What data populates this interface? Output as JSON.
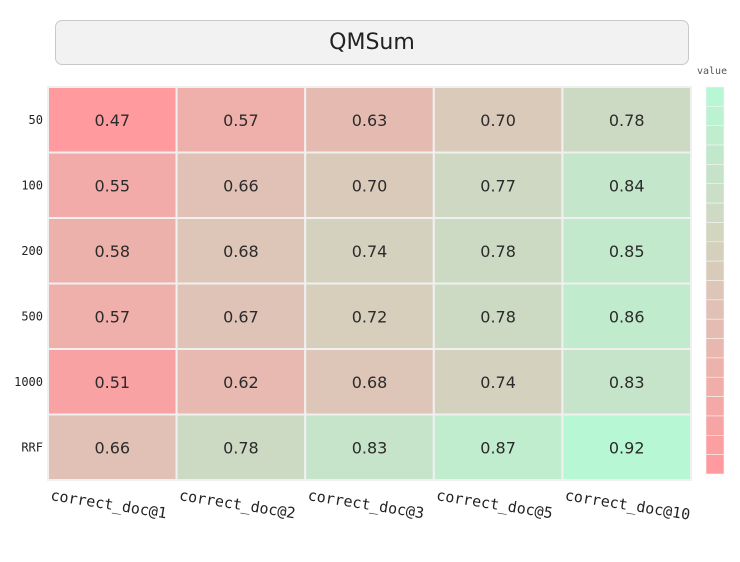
{
  "chart_data": {
    "type": "heatmap",
    "title": "QMSum",
    "x_categories": [
      "correct_doc@1",
      "correct_doc@2",
      "correct_doc@3",
      "correct_doc@5",
      "correct_doc@10"
    ],
    "y_categories": [
      "50",
      "100",
      "200",
      "500",
      "1000",
      "RRF"
    ],
    "values": [
      [
        0.47,
        0.57,
        0.63,
        0.7,
        0.78
      ],
      [
        0.55,
        0.66,
        0.7,
        0.77,
        0.84
      ],
      [
        0.58,
        0.68,
        0.74,
        0.78,
        0.85
      ],
      [
        0.57,
        0.67,
        0.72,
        0.78,
        0.86
      ],
      [
        0.51,
        0.62,
        0.68,
        0.74,
        0.83
      ],
      [
        0.66,
        0.78,
        0.83,
        0.87,
        0.92
      ]
    ],
    "value_labels": [
      [
        "0.47",
        "0.57",
        "0.63",
        "0.70",
        "0.78"
      ],
      [
        "0.55",
        "0.66",
        "0.70",
        "0.77",
        "0.84"
      ],
      [
        "0.58",
        "0.68",
        "0.74",
        "0.78",
        "0.85"
      ],
      [
        "0.57",
        "0.67",
        "0.72",
        "0.78",
        "0.86"
      ],
      [
        "0.51",
        "0.62",
        "0.68",
        "0.74",
        "0.83"
      ],
      [
        "0.66",
        "0.78",
        "0.83",
        "0.87",
        "0.92"
      ]
    ],
    "colorscale": {
      "low": "#ff9a9e",
      "high": "#b7f7d4",
      "min": 0.47,
      "max": 0.92
    },
    "legend": {
      "title": "value",
      "placement": "right"
    }
  }
}
